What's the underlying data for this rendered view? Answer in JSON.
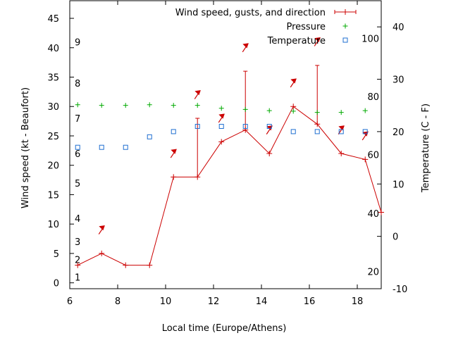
{
  "chart_data": {
    "type": "line",
    "xlabel": "Local time (Europe/Athens)",
    "ylabel": "Wind speed (kt - Beaufort)",
    "y2label": "Temperature (C - F)",
    "xlim": [
      6,
      19
    ],
    "ylim": [
      -1,
      48
    ],
    "y2lim": [
      -10,
      45
    ],
    "xticks": [
      "6",
      "8",
      "10",
      "12",
      "14",
      "16",
      "18"
    ],
    "yticks": [
      "0",
      "5",
      "10",
      "15",
      "20",
      "25",
      "30",
      "35",
      "40",
      "45"
    ],
    "y2ticks": [
      "-10",
      "0",
      "10",
      "20",
      "30",
      "40"
    ],
    "beaufort_labels": [
      {
        "label": "1",
        "kt": 1
      },
      {
        "label": "2",
        "kt": 4
      },
      {
        "label": "3",
        "kt": 7
      },
      {
        "label": "4",
        "kt": 11
      },
      {
        "label": "5",
        "kt": 17
      },
      {
        "label": "6",
        "kt": 22
      },
      {
        "label": "7",
        "kt": 28
      },
      {
        "label": "8",
        "kt": 34
      },
      {
        "label": "9",
        "kt": 41
      }
    ],
    "fahrenheit_labels": [
      {
        "label": "20",
        "c": -6.7
      },
      {
        "label": "40",
        "c": 4.4
      },
      {
        "label": "60",
        "c": 15.6
      },
      {
        "label": "80",
        "c": 26.7
      },
      {
        "label": "100",
        "c": 37.8
      }
    ],
    "legend": {
      "placement": "top-right",
      "entries": [
        {
          "label": "Wind speed, gusts, and direction",
          "color": "#cc0000",
          "marker": "plus-errorbar"
        },
        {
          "label": "Pressure",
          "color": "#00aa00",
          "marker": "plus"
        },
        {
          "label": "Temperature",
          "color": "#1f6fd1",
          "marker": "square"
        }
      ]
    },
    "series": [
      {
        "name": "Wind speed, gusts, and direction",
        "color": "#cc0000",
        "x": [
          6.33,
          7.33,
          8.33,
          9.33,
          10.33,
          11.33,
          12.33,
          13.33,
          14.33,
          15.33,
          16.33,
          17.33,
          18.33,
          19.0
        ],
        "values": [
          3,
          5,
          3,
          3,
          18,
          18,
          24,
          26,
          22,
          30,
          27,
          22,
          21,
          12
        ],
        "gusts": [
          null,
          null,
          null,
          null,
          null,
          28,
          null,
          36,
          null,
          null,
          37,
          null,
          null,
          null
        ],
        "direction_arrows": [
          {
            "x": 7.33,
            "y": 9
          },
          {
            "x": 10.33,
            "y": 22
          },
          {
            "x": 11.33,
            "y": 32
          },
          {
            "x": 12.33,
            "y": 28
          },
          {
            "x": 13.33,
            "y": 40
          },
          {
            "x": 14.33,
            "y": 26
          },
          {
            "x": 15.33,
            "y": 34
          },
          {
            "x": 16.33,
            "y": 41
          },
          {
            "x": 17.33,
            "y": 26
          },
          {
            "x": 18.33,
            "y": 25
          }
        ]
      },
      {
        "name": "Pressure",
        "color": "#00aa00",
        "x": [
          6.33,
          7.33,
          8.33,
          9.33,
          10.33,
          11.33,
          12.33,
          13.33,
          14.33,
          15.33,
          16.33,
          17.33,
          18.33
        ],
        "values": [
          30.3,
          30.2,
          30.2,
          30.3,
          30.2,
          30.2,
          29.7,
          29.5,
          29.3,
          29.2,
          29.0,
          29.0,
          29.3
        ]
      },
      {
        "name": "Temperature",
        "color": "#1f6fd1",
        "x": [
          6.33,
          7.33,
          8.33,
          9.33,
          10.33,
          11.33,
          12.33,
          13.33,
          14.33,
          15.33,
          16.33,
          17.33,
          18.33
        ],
        "values": [
          17,
          17,
          17,
          19,
          20,
          21,
          21,
          21,
          21,
          20,
          20,
          20,
          20
        ]
      }
    ]
  }
}
